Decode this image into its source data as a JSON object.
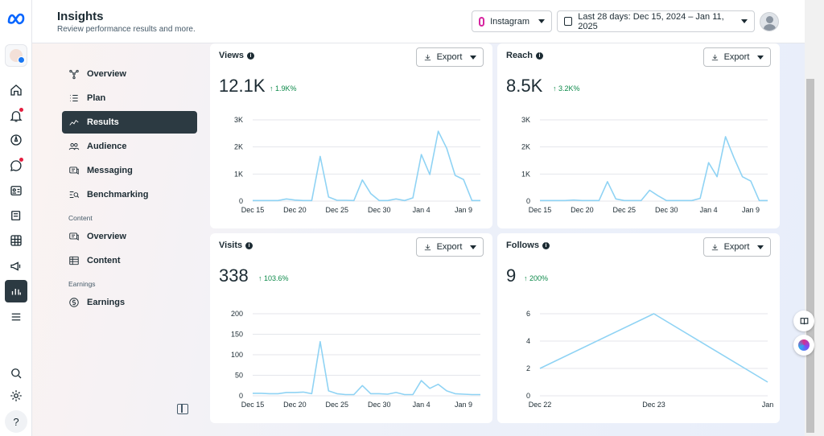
{
  "header": {
    "title": "Insights",
    "subtitle": "Review performance results and more.",
    "platform": "Instagram",
    "date_range": "Last 28 days: Dec 15, 2024 – Jan 11, 2025"
  },
  "nav": {
    "items": [
      {
        "label": "Overview",
        "icon": "nodes-icon"
      },
      {
        "label": "Plan",
        "icon": "list-icon"
      },
      {
        "label": "Results",
        "icon": "trend-icon",
        "active": true
      },
      {
        "label": "Audience",
        "icon": "people-icon"
      },
      {
        "label": "Messaging",
        "icon": "messaging-icon"
      },
      {
        "label": "Benchmarking",
        "icon": "benchmark-icon"
      }
    ],
    "content_section": "Content",
    "content_items": [
      {
        "label": "Overview",
        "icon": "messaging-icon"
      },
      {
        "label": "Content",
        "icon": "table-icon"
      }
    ],
    "earnings_section": "Earnings",
    "earnings_items": [
      {
        "label": "Earnings",
        "icon": "dollar-icon"
      }
    ]
  },
  "cards": {
    "views": {
      "title": "Views",
      "export": "Export",
      "value": "12.1K",
      "delta": "↑ 1.9K%"
    },
    "reach": {
      "title": "Reach",
      "export": "Export",
      "value": "8.5K",
      "delta": "↑ 3.2K%"
    },
    "visits": {
      "title": "Visits",
      "export": "Export",
      "value": "338",
      "delta": "↑ 103.6%"
    },
    "follows": {
      "title": "Follows",
      "export": "Export",
      "value": "9",
      "delta": "↑ 200%"
    }
  },
  "colors": {
    "line": "#8fd3f4",
    "active_nav": "#2c3a42",
    "positive": "#0d8a4a"
  },
  "chart_data": [
    {
      "type": "line",
      "title": "Views",
      "x": [
        "Dec 15",
        "Dec 16",
        "Dec 17",
        "Dec 18",
        "Dec 19",
        "Dec 20",
        "Dec 21",
        "Dec 22",
        "Dec 23",
        "Dec 24",
        "Dec 25",
        "Dec 26",
        "Dec 27",
        "Dec 28",
        "Dec 29",
        "Dec 30",
        "Dec 31",
        "Jan 1",
        "Jan 2",
        "Jan 3",
        "Jan 4",
        "Jan 5",
        "Jan 6",
        "Jan 7",
        "Jan 8",
        "Jan 9",
        "Jan 10",
        "Jan 11"
      ],
      "x_ticks": [
        "Dec 15",
        "Dec 20",
        "Dec 25",
        "Dec 30",
        "Jan 4",
        "Jan 9"
      ],
      "y_ticks": [
        "0",
        "1K",
        "2K",
        "3K"
      ],
      "ylim": [
        0,
        3000
      ],
      "values": [
        20,
        20,
        20,
        20,
        80,
        40,
        20,
        20,
        1650,
        150,
        30,
        30,
        20,
        780,
        280,
        20,
        20,
        80,
        20,
        120,
        1720,
        980,
        2580,
        1950,
        950,
        800,
        20,
        20
      ]
    },
    {
      "type": "line",
      "title": "Reach",
      "x": [
        "Dec 15",
        "Dec 16",
        "Dec 17",
        "Dec 18",
        "Dec 19",
        "Dec 20",
        "Dec 21",
        "Dec 22",
        "Dec 23",
        "Dec 24",
        "Dec 25",
        "Dec 26",
        "Dec 27",
        "Dec 28",
        "Dec 29",
        "Dec 30",
        "Dec 31",
        "Jan 1",
        "Jan 2",
        "Jan 3",
        "Jan 4",
        "Jan 5",
        "Jan 6",
        "Jan 7",
        "Jan 8",
        "Jan 9",
        "Jan 10",
        "Jan 11"
      ],
      "x_ticks": [
        "Dec 15",
        "Dec 20",
        "Dec 25",
        "Dec 30",
        "Jan 4",
        "Jan 9"
      ],
      "y_ticks": [
        "0",
        "1K",
        "2K",
        "3K"
      ],
      "ylim": [
        0,
        3000
      ],
      "values": [
        20,
        20,
        20,
        20,
        40,
        20,
        20,
        20,
        720,
        80,
        20,
        20,
        20,
        400,
        200,
        20,
        20,
        20,
        20,
        100,
        1420,
        900,
        2380,
        1600,
        900,
        740,
        20,
        20
      ]
    },
    {
      "type": "line",
      "title": "Visits",
      "x": [
        "Dec 15",
        "Dec 16",
        "Dec 17",
        "Dec 18",
        "Dec 19",
        "Dec 20",
        "Dec 21",
        "Dec 22",
        "Dec 23",
        "Dec 24",
        "Dec 25",
        "Dec 26",
        "Dec 27",
        "Dec 28",
        "Dec 29",
        "Dec 30",
        "Dec 31",
        "Jan 1",
        "Jan 2",
        "Jan 3",
        "Jan 4",
        "Jan 5",
        "Jan 6",
        "Jan 7",
        "Jan 8",
        "Jan 9",
        "Jan 10",
        "Jan 11"
      ],
      "x_ticks": [
        "Dec 15",
        "Dec 20",
        "Dec 25",
        "Dec 30",
        "Jan 4",
        "Jan 9"
      ],
      "y_ticks": [
        "0",
        "50",
        "100",
        "150",
        "200"
      ],
      "ylim": [
        0,
        200
      ],
      "values": [
        6,
        6,
        5,
        5,
        8,
        8,
        9,
        5,
        132,
        12,
        5,
        3,
        3,
        25,
        5,
        5,
        4,
        8,
        3,
        3,
        37,
        18,
        28,
        12,
        5,
        4,
        3,
        3
      ]
    },
    {
      "type": "line",
      "title": "Follows",
      "x": [
        "Dec 22",
        "Dec 23",
        "Jan"
      ],
      "x_ticks": [
        "Dec 22",
        "Dec 23",
        "Jan"
      ],
      "y_ticks": [
        "0",
        "2",
        "4",
        "6"
      ],
      "ylim": [
        0,
        6
      ],
      "values": [
        2,
        6,
        1
      ]
    }
  ]
}
